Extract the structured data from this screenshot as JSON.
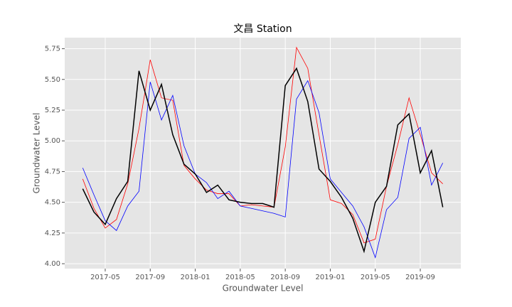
{
  "chart_data": {
    "type": "line",
    "title": "文昌 Station",
    "x_label": "Groundwater Level",
    "y_label": "Groundwater Level",
    "x": [
      "2017-03",
      "2017-04",
      "2017-05",
      "2017-06",
      "2017-07",
      "2017-08",
      "2017-09",
      "2017-10",
      "2017-11",
      "2017-12",
      "2018-01",
      "2018-02",
      "2018-03",
      "2018-04",
      "2018-05",
      "2018-06",
      "2018-07",
      "2018-08",
      "2018-09",
      "2018-10",
      "2018-11",
      "2018-12",
      "2019-01",
      "2019-02",
      "2019-03",
      "2019-04",
      "2019-05",
      "2019-06",
      "2019-07",
      "2019-08",
      "2019-09",
      "2019-10",
      "2019-11"
    ],
    "xticks": [
      "2017-05",
      "2017-09",
      "2018-01",
      "2018-05",
      "2018-09",
      "2019-01",
      "2019-05",
      "2019-09"
    ],
    "series": [
      {
        "color": "#ff0000",
        "values": [
          4.69,
          4.45,
          4.29,
          4.36,
          4.65,
          5.1,
          5.66,
          5.35,
          5.33,
          4.8,
          4.69,
          4.6,
          4.57,
          4.57,
          4.47,
          4.48,
          4.47,
          4.46,
          4.95,
          5.76,
          5.59,
          5.05,
          4.52,
          4.49,
          4.4,
          4.17,
          4.2,
          4.63,
          4.97,
          5.35,
          5.05,
          4.74,
          4.65
        ]
      },
      {
        "color": "#0000ff",
        "values": [
          4.78,
          4.56,
          4.35,
          4.27,
          4.47,
          4.59,
          5.48,
          5.17,
          5.37,
          4.96,
          4.73,
          4.66,
          4.53,
          4.59,
          4.47,
          4.45,
          4.43,
          4.41,
          4.38,
          5.34,
          5.49,
          5.23,
          4.69,
          4.58,
          4.47,
          4.3,
          4.05,
          4.44,
          4.54,
          5.02,
          5.11,
          4.64,
          4.82
        ]
      },
      {
        "color": "#000000",
        "values": [
          4.61,
          4.42,
          4.32,
          4.53,
          4.67,
          5.57,
          5.25,
          5.46,
          5.05,
          4.81,
          4.73,
          4.58,
          4.64,
          4.52,
          4.5,
          4.49,
          4.49,
          4.46,
          5.45,
          5.59,
          5.32,
          4.77,
          4.67,
          4.54,
          4.37,
          4.1,
          4.5,
          4.63,
          5.13,
          5.22,
          4.74,
          4.92,
          4.46
        ]
      }
    ],
    "ylim": [
      3.96,
      5.84
    ],
    "yticks": [
      {
        "value": 4,
        "label": "4.00"
      },
      4.25,
      {
        "value": 4.5,
        "label": "4.50"
      },
      4.75,
      {
        "value": 5,
        "label": "5.00"
      },
      5.25,
      {
        "value": 5.5,
        "label": "5.50"
      },
      5.75
    ],
    "grid": true
  }
}
